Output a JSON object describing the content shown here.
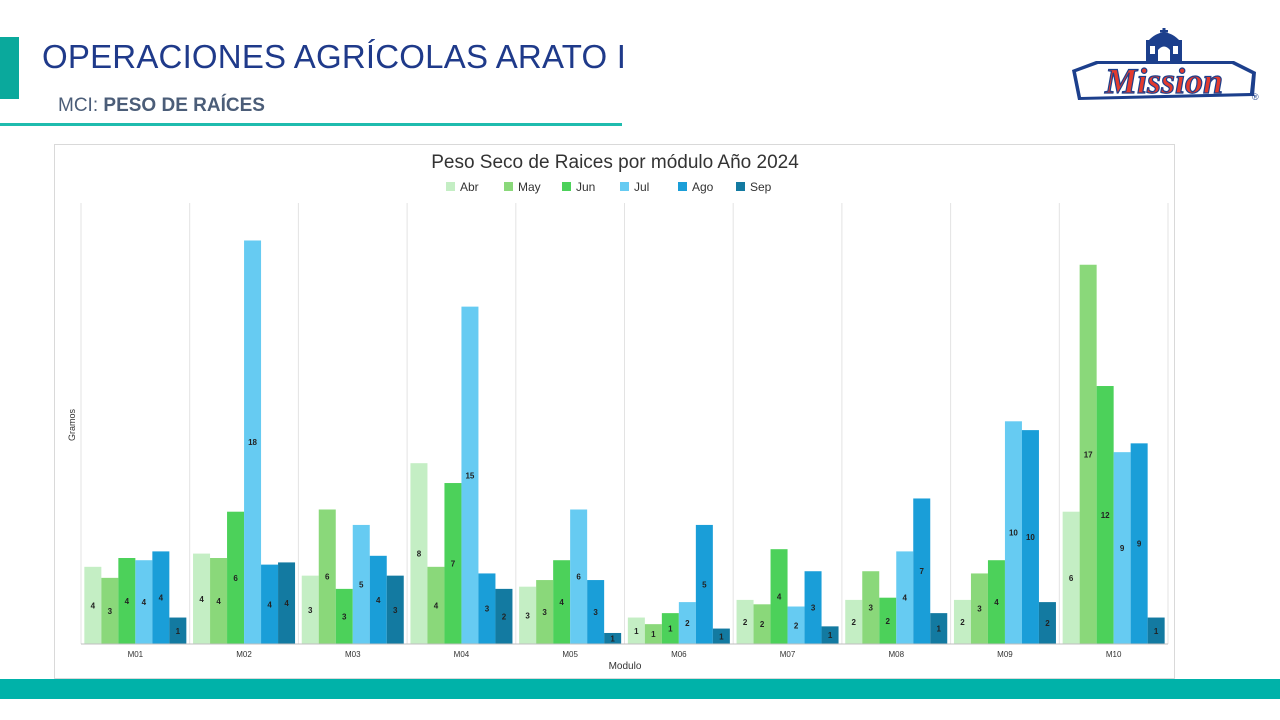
{
  "header": {
    "title": "OPERACIONES AGRÍCOLAS ARATO I",
    "subtitle_prefix": "MCI: ",
    "subtitle_bold": "PESO DE RAÍCES",
    "logo_text": "Mission",
    "logo_mark": "®"
  },
  "colors": {
    "title": "#1f3a8a",
    "accent": "#0aa99c",
    "band": "#00b2a9"
  },
  "chart_data": {
    "type": "bar",
    "title": "Peso Seco de Raices por módulo Año 2024",
    "xlabel": "Modulo",
    "ylabel": "Gramos",
    "ylim": [
      0,
      20
    ],
    "grid": "vertical category separators",
    "legend_position": "top",
    "categories": [
      "M01",
      "M02",
      "M03",
      "M04",
      "M05",
      "M06",
      "M07",
      "M08",
      "M09",
      "M10"
    ],
    "series": [
      {
        "name": "Abr",
        "color": "#c4eec4",
        "values": [
          3.5,
          4.1,
          3.1,
          8.2,
          2.6,
          1.2,
          2.0,
          2.0,
          2.0,
          6.0
        ],
        "labels": [
          "4",
          "4",
          "3",
          "8",
          "3",
          "1",
          "2",
          "2",
          "2",
          "6"
        ]
      },
      {
        "name": "May",
        "color": "#8ad87a",
        "values": [
          3.0,
          3.9,
          6.1,
          3.5,
          2.9,
          0.9,
          1.8,
          3.3,
          3.2,
          17.2
        ],
        "labels": [
          "3",
          "4",
          "6",
          "4",
          "3",
          "1",
          "2",
          "3",
          "3",
          "17"
        ]
      },
      {
        "name": "Jun",
        "color": "#4cd15a",
        "values": [
          3.9,
          6.0,
          2.5,
          7.3,
          3.8,
          1.4,
          4.3,
          2.1,
          3.8,
          11.7
        ],
        "labels": [
          "4",
          "6",
          "3",
          "7",
          "4",
          "1",
          "4",
          "2",
          "4",
          "12"
        ]
      },
      {
        "name": "Jul",
        "color": "#66cbf2",
        "values": [
          3.8,
          18.3,
          5.4,
          15.3,
          6.1,
          1.9,
          1.7,
          4.2,
          10.1,
          8.7
        ],
        "labels": [
          "4",
          "18",
          "5",
          "15",
          "6",
          "2",
          "2",
          "4",
          "10",
          "9"
        ]
      },
      {
        "name": "Ago",
        "color": "#1a9ed8",
        "values": [
          4.2,
          3.6,
          4.0,
          3.2,
          2.9,
          5.4,
          3.3,
          6.6,
          9.7,
          9.1
        ],
        "labels": [
          "4",
          "4",
          "4",
          "3",
          "3",
          "5",
          "3",
          "7",
          "10",
          "9"
        ]
      },
      {
        "name": "Sep",
        "color": "#137aa1",
        "values": [
          1.2,
          3.7,
          3.1,
          2.5,
          0.5,
          0.7,
          0.8,
          1.4,
          1.9,
          1.2
        ],
        "labels": [
          "1",
          "4",
          "3",
          "2",
          "1",
          "1",
          "1",
          "1",
          "2",
          "1"
        ]
      }
    ]
  }
}
